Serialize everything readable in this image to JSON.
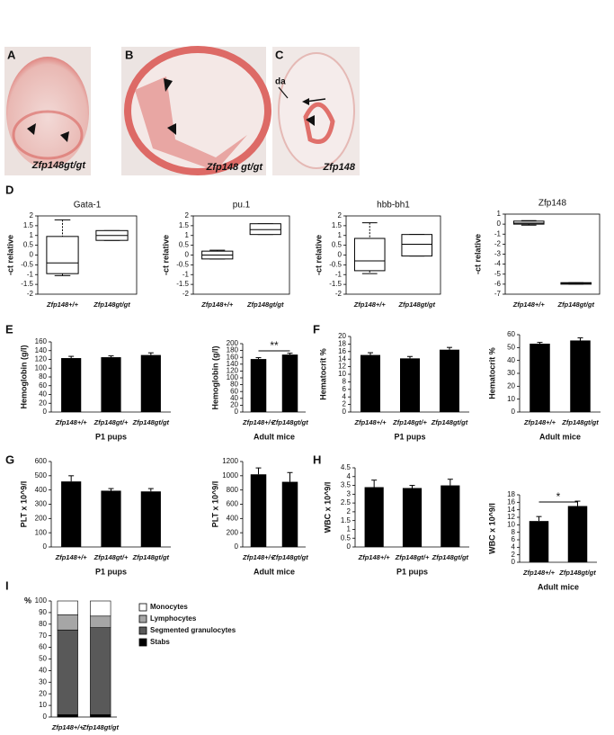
{
  "panel_labels": [
    "A",
    "B",
    "C",
    "D",
    "E",
    "F",
    "G",
    "H",
    "I"
  ],
  "image_panels": [
    {
      "caption": "Zfp148gt/gt"
    },
    {
      "caption": "Zfp148 gt/gt"
    },
    {
      "caption": "Zfp148",
      "annotation": "da"
    }
  ],
  "chart_data": [
    {
      "type": "box",
      "title": "Gata-1",
      "ylabel": "-ct relative",
      "categories": [
        "Zfp148+/+",
        "Zfp148gt/gt"
      ],
      "ylim": [
        -2,
        2
      ],
      "yticks": [
        2,
        1.5,
        1,
        0.5,
        0,
        -0.5,
        -1,
        -1.5,
        -2
      ],
      "boxes": [
        {
          "min": -1.05,
          "q1": -0.95,
          "median": -0.4,
          "q3": 0.95,
          "max": 1.8
        },
        {
          "min": 0.75,
          "q1": 0.75,
          "median": 1.0,
          "q3": 1.25,
          "max": 1.25
        }
      ]
    },
    {
      "type": "box",
      "title": "pu.1",
      "ylabel": "-ct relative",
      "categories": [
        "Zfp148+/+",
        "Zfp148gt/gt"
      ],
      "ylim": [
        -2,
        2
      ],
      "yticks": [
        2,
        1.5,
        1,
        0.5,
        0,
        -0.5,
        -1,
        -1.5,
        -2
      ],
      "boxes": [
        {
          "min": -0.2,
          "q1": -0.2,
          "median": 0,
          "q3": 0.2,
          "max": 0.25
        },
        {
          "min": 1.05,
          "q1": 1.05,
          "median": 1.3,
          "q3": 1.6,
          "max": 1.6
        }
      ]
    },
    {
      "type": "box",
      "title": "hbb-bh1",
      "ylabel": "-ct relative",
      "categories": [
        "Zfp148+/+",
        "Zfp148gt/gt"
      ],
      "ylim": [
        -2,
        2
      ],
      "yticks": [
        2,
        1.5,
        1,
        0.5,
        0,
        -0.5,
        -1,
        -1.5,
        -2
      ],
      "boxes": [
        {
          "min": -0.95,
          "q1": -0.8,
          "median": -0.3,
          "q3": 0.85,
          "max": 1.65
        },
        {
          "min": -0.05,
          "q1": -0.05,
          "median": 0.55,
          "q3": 1.05,
          "max": 1.05
        }
      ]
    },
    {
      "type": "box",
      "title": "Zfp148",
      "ylabel": "-ct relative",
      "categories": [
        "Zfp148+/+",
        "Zfp148gt/gt"
      ],
      "ylim": [
        -7,
        1
      ],
      "yticks": [
        1,
        0,
        -1,
        -2,
        -3,
        -4,
        -5,
        -6,
        -7
      ],
      "boxes": [
        {
          "min": -0.1,
          "q1": 0,
          "median": 0.1,
          "q3": 0.3,
          "max": 0.35
        },
        {
          "min": -6.0,
          "q1": -6.0,
          "median": -5.9,
          "q3": -5.85,
          "max": -5.85
        }
      ]
    },
    {
      "type": "bar",
      "ylabel": "Hemoglobin (g/l)",
      "xlabel": "P1 pups",
      "categories": [
        "Zfp148+/+",
        "Zfp148gt/+",
        "Zfp148gt/gt"
      ],
      "values": [
        123,
        125,
        130
      ],
      "errors": [
        4,
        3,
        5
      ],
      "color": "#000000",
      "ylim": [
        0,
        160
      ],
      "yticks": [
        0,
        20,
        40,
        60,
        80,
        100,
        120,
        140,
        160
      ]
    },
    {
      "type": "bar",
      "ylabel": "Hemoglobin (g/l)",
      "xlabel": "Adult mice",
      "categories": [
        "Zfp148+/+",
        "Zfp148gt/gt"
      ],
      "values": [
        155,
        168
      ],
      "errors": [
        4,
        4
      ],
      "color": "#000000",
      "ylim": [
        0,
        200
      ],
      "yticks": [
        0,
        20,
        40,
        60,
        80,
        100,
        120,
        140,
        160,
        180,
        200
      ],
      "annotation": "**"
    },
    {
      "type": "bar",
      "ylabel": "Hematocrit %",
      "xlabel": "P1 pups",
      "categories": [
        "Zfp148+/+",
        "Zfp148gt/+",
        "Zfp148gt/gt"
      ],
      "values": [
        15.1,
        14.2,
        16.5
      ],
      "errors": [
        0.6,
        0.5,
        0.6
      ],
      "color": "#000000",
      "ylim": [
        0,
        20
      ],
      "yticks": [
        0,
        2,
        4,
        6,
        8,
        10,
        12,
        14,
        16,
        18,
        20
      ]
    },
    {
      "type": "bar",
      "ylabel": "Hematocrit %",
      "xlabel": "Adult mice",
      "categories": [
        "Zfp148+/+",
        "Zfp148gt/gt"
      ],
      "values": [
        53,
        55.5
      ],
      "errors": [
        1,
        2
      ],
      "color": "#000000",
      "ylim": [
        0,
        60
      ],
      "yticks": [
        0,
        10,
        20,
        30,
        40,
        50,
        60
      ]
    },
    {
      "type": "bar",
      "ylabel": "PLT  x 10^9/l",
      "xlabel": "P1 pups",
      "categories": [
        "Zfp148+/+",
        "Zfp148gt/+",
        "Zfp148gt/gt"
      ],
      "values": [
        460,
        395,
        390
      ],
      "errors": [
        40,
        15,
        20
      ],
      "color": "#000000",
      "ylim": [
        0,
        600
      ],
      "yticks": [
        0,
        100,
        200,
        300,
        400,
        500,
        600
      ]
    },
    {
      "type": "bar",
      "ylabel": "PLT  x 10^9/l",
      "xlabel": "Adult mice",
      "categories": [
        "Zfp148+/+",
        "Zfp148gt/gt"
      ],
      "values": [
        1020,
        915
      ],
      "errors": [
        90,
        130
      ],
      "color": "#000000",
      "ylim": [
        0,
        1200
      ],
      "yticks": [
        0,
        200,
        400,
        600,
        800,
        1000,
        1200
      ]
    },
    {
      "type": "bar",
      "ylabel": "WBC  x 10^9/l",
      "xlabel": "P1 pups",
      "categories": [
        "Zfp148+/+",
        "Zfp148gt/+",
        "Zfp148gt/gt"
      ],
      "values": [
        3.4,
        3.35,
        3.5
      ],
      "errors": [
        0.4,
        0.15,
        0.35
      ],
      "color": "#000000",
      "ylim": [
        0,
        4.5
      ],
      "yticks": [
        0,
        0.5,
        1,
        1.5,
        2,
        2.5,
        3,
        3.5,
        4,
        4.5
      ]
    },
    {
      "type": "bar",
      "ylabel": "WBC  x 10^9/l",
      "xlabel": "Adult mice",
      "categories": [
        "Zfp148+/+",
        "Zfp148gt/gt"
      ],
      "values": [
        11,
        15
      ],
      "errors": [
        1.2,
        1.3
      ],
      "color": "#000000",
      "ylim": [
        0,
        18
      ],
      "yticks": [
        0,
        2,
        4,
        6,
        8,
        10,
        12,
        14,
        16,
        18
      ],
      "annotation": "*"
    },
    {
      "type": "stacked",
      "ylabel": "%",
      "categories": [
        "Zfp148+/+",
        "Zfp148gt/gt"
      ],
      "ylim": [
        0,
        100
      ],
      "yticks": [
        0,
        10,
        20,
        30,
        40,
        50,
        60,
        70,
        80,
        90,
        100
      ],
      "series": [
        {
          "name": "Stabs",
          "color": "#000000",
          "values": [
            2,
            2
          ]
        },
        {
          "name": "Segmented granulocytes",
          "color": "#595959",
          "values": [
            73,
            75
          ]
        },
        {
          "name": "Lymphocytes",
          "color": "#a6a6a6",
          "values": [
            13,
            10
          ]
        },
        {
          "name": "Monocytes",
          "color": "#ffffff",
          "values": [
            12,
            13
          ]
        }
      ]
    }
  ]
}
